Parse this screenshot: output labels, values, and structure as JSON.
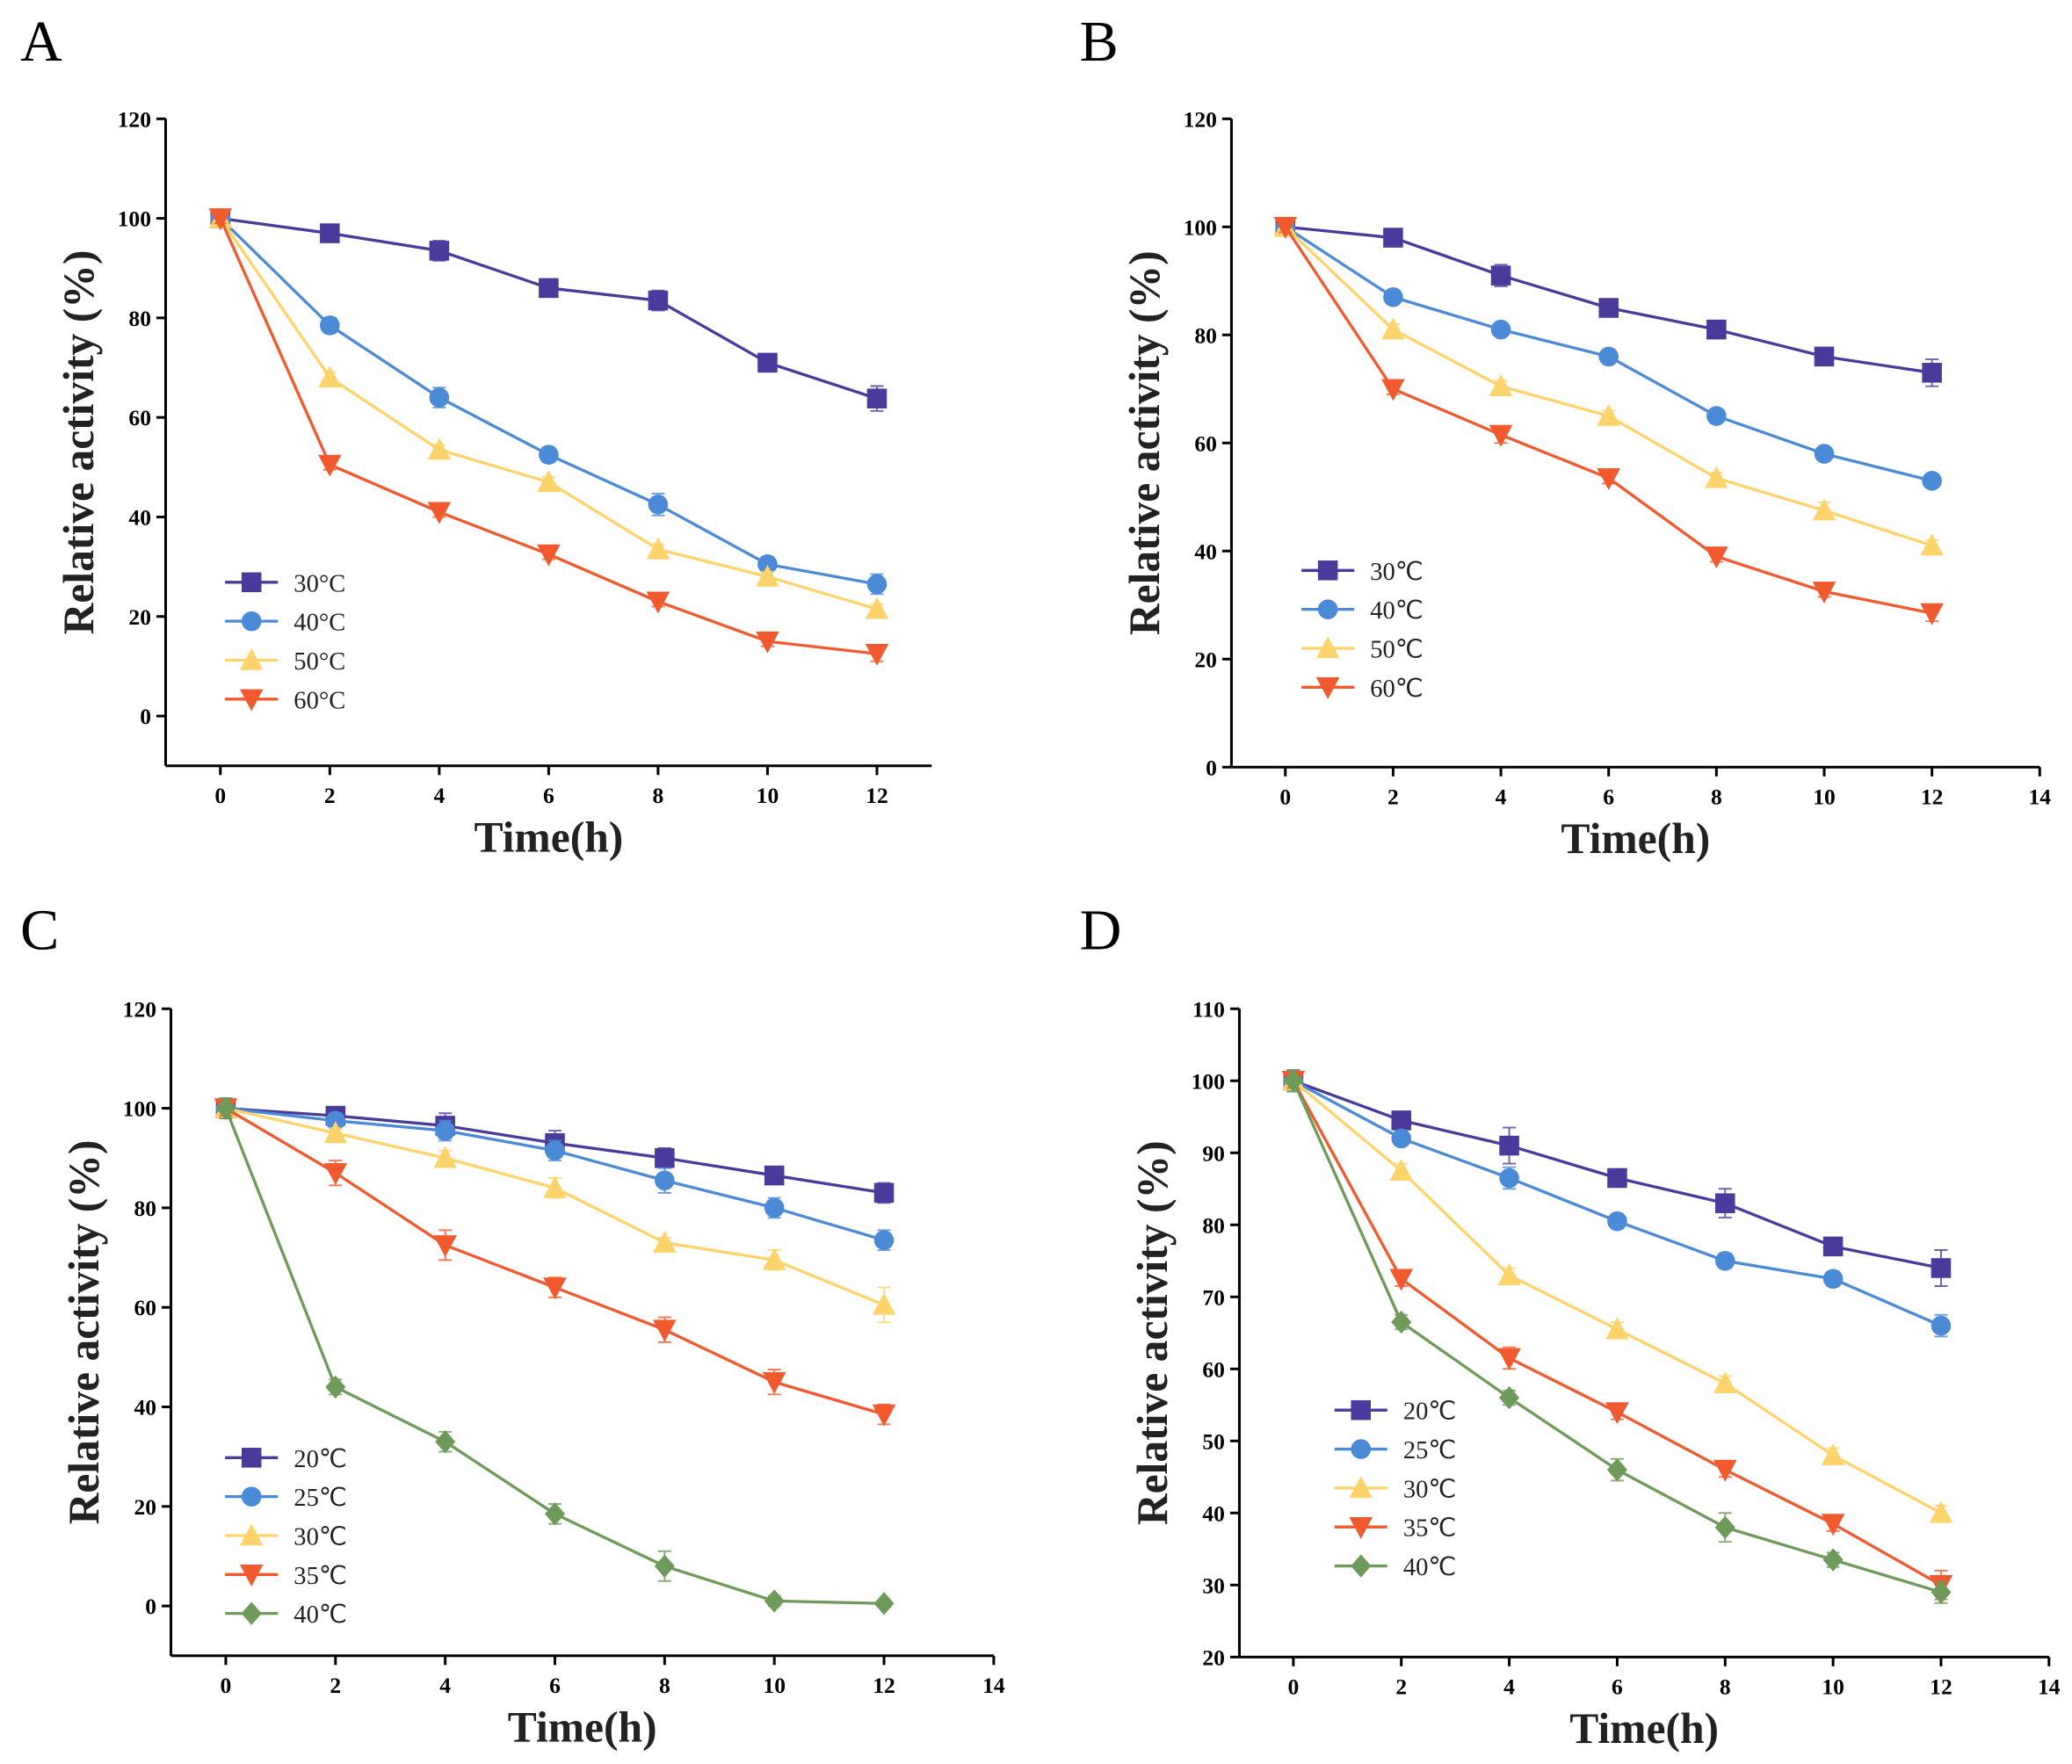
{
  "chart_data": [
    {
      "type": "line",
      "panel": "A",
      "xlabel": "Time(h)",
      "ylabel": "Relative activity (%)",
      "x": [
        0,
        2,
        4,
        6,
        8,
        10,
        12
      ],
      "xlim": [
        -1,
        13
      ],
      "xticks": [
        0,
        2,
        4,
        6,
        8,
        10,
        12
      ],
      "ylim": [
        -10,
        120
      ],
      "yticks": [
        0,
        20,
        40,
        60,
        80,
        100,
        120
      ],
      "series": [
        {
          "name": "30°C",
          "color": "#4b3a9c",
          "marker": "square",
          "values": [
            100,
            97,
            93.5,
            86,
            83.5,
            71,
            63.8
          ],
          "errors": [
            1.2,
            0.8,
            2,
            0.8,
            2,
            1,
            2.5
          ]
        },
        {
          "name": "40°C",
          "color": "#4a8ad6",
          "marker": "circle",
          "values": [
            100,
            78.5,
            64,
            52.5,
            42.5,
            30.5,
            26.5
          ],
          "errors": [
            1.2,
            1.5,
            2,
            1.5,
            2.2,
            1.5,
            2
          ]
        },
        {
          "name": "50°C",
          "color": "#ffd36b",
          "marker": "triangle-up",
          "values": [
            100,
            68,
            53.5,
            47,
            33.5,
            28,
            21.5
          ],
          "errors": [
            1,
            1,
            1,
            1,
            1,
            1,
            1
          ]
        },
        {
          "name": "60°C",
          "color": "#f05a2e",
          "marker": "triangle-down",
          "values": [
            100,
            50.5,
            41,
            32.5,
            23,
            15,
            12.5
          ],
          "errors": [
            1,
            1,
            1,
            1,
            1,
            1,
            1.5
          ]
        }
      ]
    },
    {
      "type": "line",
      "panel": "B",
      "xlabel": "Time(h)",
      "ylabel": "Relative activity (%)",
      "x": [
        0,
        2,
        4,
        6,
        8,
        10,
        12
      ],
      "xlim": [
        -1,
        14
      ],
      "xticks": [
        0,
        2,
        4,
        6,
        8,
        10,
        12,
        14
      ],
      "ylim": [
        0,
        120
      ],
      "yticks": [
        0,
        20,
        40,
        60,
        80,
        100,
        120
      ],
      "series": [
        {
          "name": "30℃",
          "color": "#4b3a9c",
          "marker": "square",
          "values": [
            100,
            98,
            91,
            85,
            81,
            76,
            73
          ],
          "errors": [
            1,
            0.8,
            2,
            1,
            1.5,
            1,
            2.5
          ]
        },
        {
          "name": "40℃",
          "color": "#4a8ad6",
          "marker": "circle",
          "values": [
            100,
            87,
            81,
            76,
            65,
            58,
            53
          ],
          "errors": [
            1,
            1,
            1.2,
            1,
            1,
            1,
            1
          ]
        },
        {
          "name": "50℃",
          "color": "#ffd36b",
          "marker": "triangle-up",
          "values": [
            100,
            81,
            70.5,
            65,
            53.5,
            47.5,
            41
          ],
          "errors": [
            1,
            1,
            1,
            1,
            1,
            1.5,
            1
          ]
        },
        {
          "name": "60℃",
          "color": "#f05a2e",
          "marker": "triangle-down",
          "values": [
            100,
            70,
            61.5,
            53.5,
            39,
            32.5,
            28.5
          ],
          "errors": [
            1,
            1,
            1.5,
            1,
            1,
            1,
            1.5
          ]
        }
      ]
    },
    {
      "type": "line",
      "panel": "C",
      "xlabel": "Time(h)",
      "ylabel": "Relative activity (%)",
      "x": [
        0,
        2,
        4,
        6,
        8,
        10,
        12
      ],
      "xlim": [
        -1,
        14
      ],
      "xticks": [
        0,
        2,
        4,
        6,
        8,
        10,
        12,
        14
      ],
      "ylim": [
        -10,
        120
      ],
      "yticks": [
        0,
        20,
        40,
        60,
        80,
        100,
        120
      ],
      "series": [
        {
          "name": "20℃",
          "color": "#4b3a9c",
          "marker": "square",
          "values": [
            100,
            98.5,
            96.5,
            93,
            90,
            86.5,
            83
          ],
          "errors": [
            2,
            1,
            2.5,
            2.5,
            2,
            1,
            2
          ]
        },
        {
          "name": "25℃",
          "color": "#4a8ad6",
          "marker": "circle",
          "values": [
            100,
            97.5,
            95.5,
            91.5,
            85.5,
            80,
            73.5
          ],
          "errors": [
            2,
            1.5,
            2,
            2,
            2.5,
            2,
            2
          ]
        },
        {
          "name": "30℃",
          "color": "#ffd36b",
          "marker": "triangle-up",
          "values": [
            100,
            95,
            90,
            84,
            73,
            69.5,
            60.5
          ],
          "errors": [
            1.5,
            1,
            1.5,
            2,
            1,
            2,
            3.5
          ]
        },
        {
          "name": "35℃",
          "color": "#f05a2e",
          "marker": "triangle-down",
          "values": [
            100,
            87,
            72.5,
            64,
            55.5,
            45,
            38.5
          ],
          "errors": [
            1.5,
            2.5,
            3,
            2,
            2.5,
            2.5,
            2
          ]
        },
        {
          "name": "40℃",
          "color": "#6e9a5a",
          "marker": "diamond",
          "values": [
            100,
            44,
            33,
            18.5,
            8,
            1,
            0.5
          ],
          "errors": [
            2,
            1.5,
            2,
            2,
            3,
            1,
            0.5
          ]
        }
      ]
    },
    {
      "type": "line",
      "panel": "D",
      "xlabel": "Time(h)",
      "ylabel": "Relative activity (%)",
      "x": [
        0,
        2,
        4,
        6,
        8,
        10,
        12
      ],
      "xlim": [
        -1,
        14
      ],
      "xticks": [
        0,
        2,
        4,
        6,
        8,
        10,
        12,
        14
      ],
      "ylim": [
        20,
        110
      ],
      "yticks": [
        20,
        30,
        40,
        50,
        60,
        70,
        80,
        90,
        100,
        110
      ],
      "series": [
        {
          "name": "20℃",
          "color": "#4b3a9c",
          "marker": "square",
          "values": [
            100,
            94.5,
            91,
            86.5,
            83,
            77,
            74
          ],
          "errors": [
            1.5,
            1,
            2.5,
            1,
            2,
            1,
            2.5
          ]
        },
        {
          "name": "25℃",
          "color": "#4a8ad6",
          "marker": "circle",
          "values": [
            100,
            92,
            86.5,
            80.5,
            75,
            72.5,
            66
          ],
          "errors": [
            1.5,
            1,
            1.5,
            1,
            1,
            1,
            1.5
          ]
        },
        {
          "name": "30℃",
          "color": "#ffd36b",
          "marker": "triangle-up",
          "values": [
            100,
            87.5,
            73,
            65.5,
            58,
            48,
            40
          ],
          "errors": [
            1,
            1,
            1,
            1,
            1,
            1,
            1
          ]
        },
        {
          "name": "35℃",
          "color": "#f05a2e",
          "marker": "triangle-down",
          "values": [
            100,
            72.5,
            61.5,
            54,
            46,
            38.5,
            30
          ],
          "errors": [
            1,
            1,
            1.5,
            1,
            1,
            1,
            2
          ]
        },
        {
          "name": "40℃",
          "color": "#6e9a5a",
          "marker": "diamond",
          "values": [
            100,
            66.5,
            56,
            46,
            38,
            33.5,
            29
          ],
          "errors": [
            1.5,
            1,
            1,
            1.5,
            2,
            1,
            1.5
          ]
        }
      ]
    }
  ]
}
